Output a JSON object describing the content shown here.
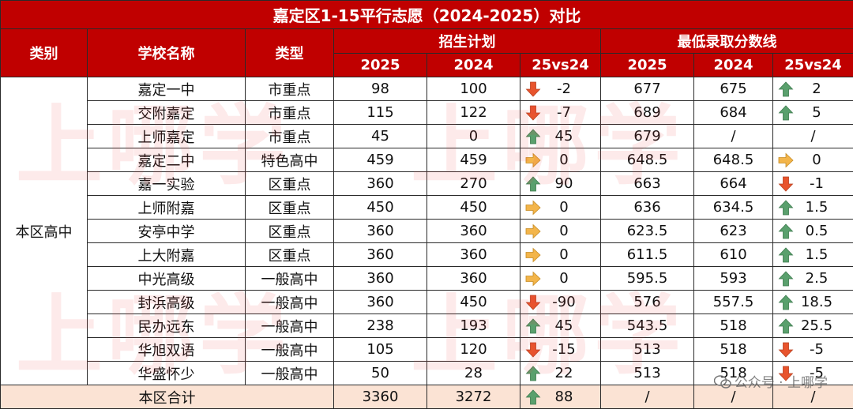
{
  "title": "嘉定区1-15平行志愿（2024-2025）对比",
  "headers": {
    "category": "类别",
    "school": "学校名称",
    "type": "类型",
    "enroll_group": "招生计划",
    "score_group": "最低录取分数线",
    "y2025": "2025",
    "y2024": "2024",
    "vs": "25vs24"
  },
  "category_label": "本区高中",
  "rows": [
    {
      "school": "嘉定一中",
      "type": "市重点",
      "plan2025": "98",
      "plan2024": "100",
      "plan_trend": "down",
      "plan_diff": "-2",
      "score2025": "677",
      "score2024": "675",
      "score_trend": "up",
      "score_diff": "2"
    },
    {
      "school": "交附嘉定",
      "type": "市重点",
      "plan2025": "115",
      "plan2024": "122",
      "plan_trend": "down",
      "plan_diff": "-7",
      "score2025": "689",
      "score2024": "684",
      "score_trend": "up",
      "score_diff": "5"
    },
    {
      "school": "上师嘉定",
      "type": "市重点",
      "plan2025": "45",
      "plan2024": "0",
      "plan_trend": "up",
      "plan_diff": "45",
      "score2025": "679",
      "score2024": "/",
      "score_trend": "none",
      "score_diff": "/"
    },
    {
      "school": "嘉定二中",
      "type": "特色高中",
      "plan2025": "459",
      "plan2024": "459",
      "plan_trend": "flat",
      "plan_diff": "0",
      "score2025": "648.5",
      "score2024": "648.5",
      "score_trend": "flat",
      "score_diff": "0"
    },
    {
      "school": "嘉一实验",
      "type": "区重点",
      "plan2025": "360",
      "plan2024": "270",
      "plan_trend": "up",
      "plan_diff": "90",
      "score2025": "663",
      "score2024": "664",
      "score_trend": "down",
      "score_diff": "-1"
    },
    {
      "school": "上师附嘉",
      "type": "区重点",
      "plan2025": "450",
      "plan2024": "450",
      "plan_trend": "flat",
      "plan_diff": "0",
      "score2025": "636",
      "score2024": "634.5",
      "score_trend": "up",
      "score_diff": "1.5"
    },
    {
      "school": "安亭中学",
      "type": "区重点",
      "plan2025": "360",
      "plan2024": "360",
      "plan_trend": "flat",
      "plan_diff": "0",
      "score2025": "623.5",
      "score2024": "623",
      "score_trend": "up",
      "score_diff": "0.5"
    },
    {
      "school": "上大附嘉",
      "type": "区重点",
      "plan2025": "360",
      "plan2024": "360",
      "plan_trend": "flat",
      "plan_diff": "0",
      "score2025": "611.5",
      "score2024": "610",
      "score_trend": "up",
      "score_diff": "1.5"
    },
    {
      "school": "中光高级",
      "type": "一般高中",
      "plan2025": "360",
      "plan2024": "360",
      "plan_trend": "flat",
      "plan_diff": "0",
      "score2025": "595.5",
      "score2024": "593",
      "score_trend": "up",
      "score_diff": "2.5"
    },
    {
      "school": "封浜高级",
      "type": "一般高中",
      "plan2025": "360",
      "plan2024": "450",
      "plan_trend": "down",
      "plan_diff": "-90",
      "score2025": "576",
      "score2024": "557.5",
      "score_trend": "up",
      "score_diff": "18.5"
    },
    {
      "school": "民办远东",
      "type": "一般高中",
      "plan2025": "238",
      "plan2024": "193",
      "plan_trend": "up",
      "plan_diff": "45",
      "score2025": "543.5",
      "score2024": "518",
      "score_trend": "up",
      "score_diff": "25.5"
    },
    {
      "school": "华旭双语",
      "type": "一般高中",
      "plan2025": "105",
      "plan2024": "120",
      "plan_trend": "down",
      "plan_diff": "-15",
      "score2025": "513",
      "score2024": "518",
      "score_trend": "down",
      "score_diff": "-5"
    },
    {
      "school": "华盛怀少",
      "type": "一般高中",
      "plan2025": "50",
      "plan2024": "28",
      "plan_trend": "up",
      "plan_diff": "22",
      "score2025": "513",
      "score2024": "518",
      "score_trend": "down",
      "score_diff": "-5"
    }
  ],
  "total": {
    "label": "本区合计",
    "plan2025": "3360",
    "plan2024": "3272",
    "plan_trend": "up",
    "plan_diff": "88",
    "score2025": "/",
    "score2024": "/",
    "score_diff": "/"
  },
  "watermark": "上哪学",
  "credit": "公众号 · 上哪学",
  "colors": {
    "header_bg": "#c00000",
    "total_bg": "#fbe3d4",
    "up": "#5aa06d",
    "down": "#e8542d",
    "flat": "#f3b54a"
  },
  "icons": {
    "up": "green-up-arrow-icon",
    "down": "red-down-arrow-icon",
    "flat": "yellow-right-arrow-icon",
    "wechat": "wechat-icon"
  }
}
